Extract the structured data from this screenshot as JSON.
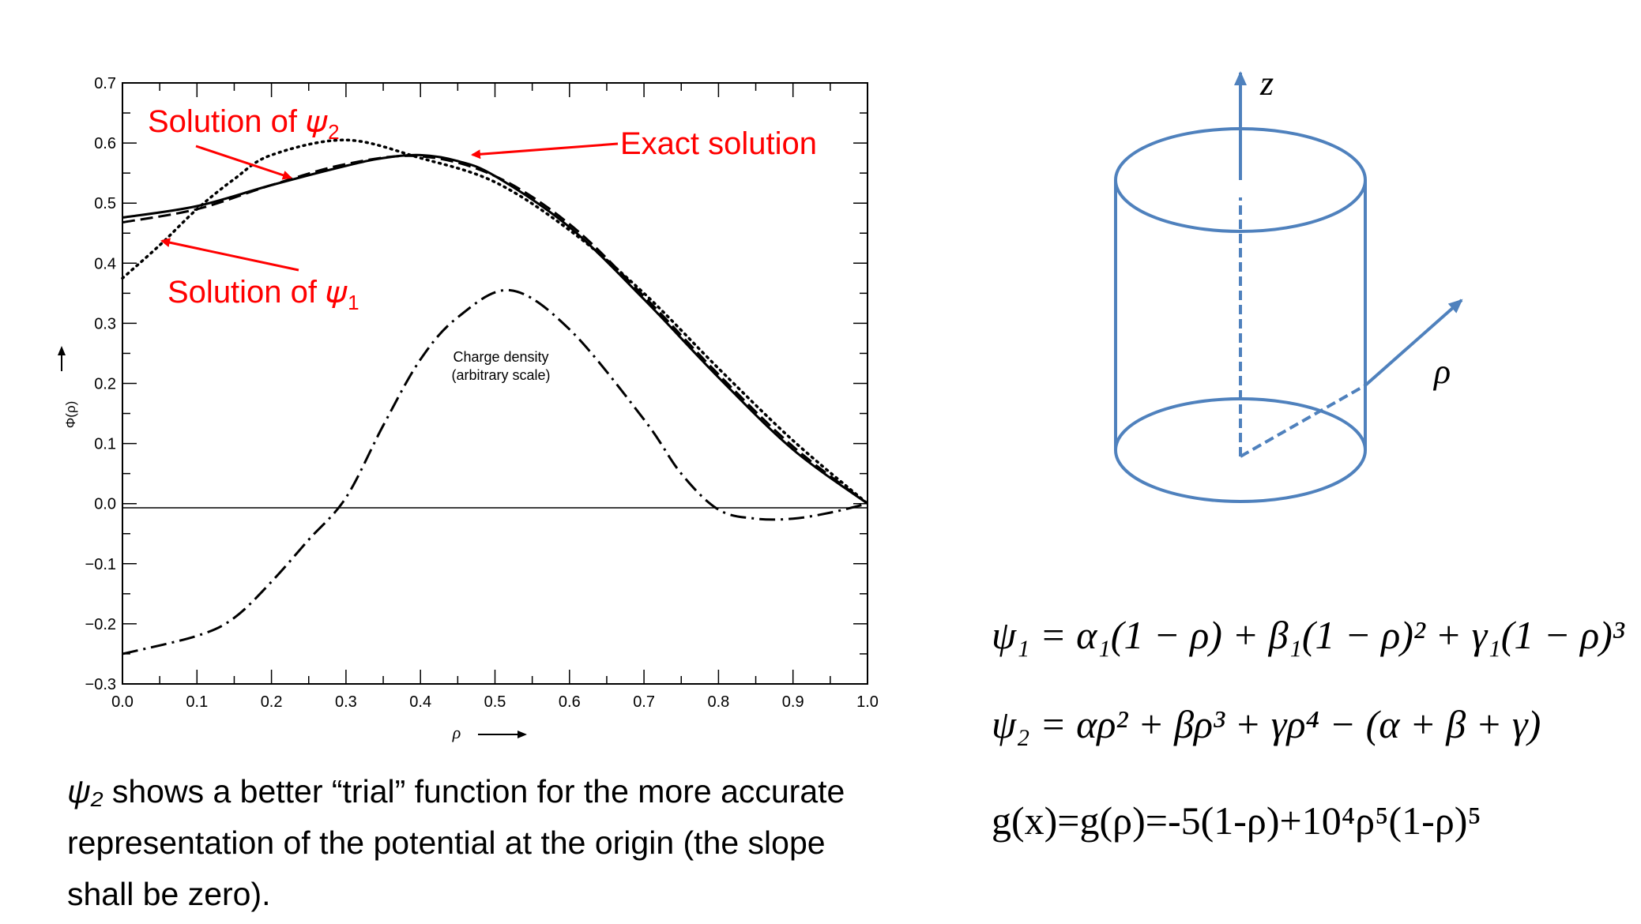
{
  "chart_data": {
    "type": "line",
    "xlabel": "ρ",
    "ylabel": "Φ(ρ)",
    "xlim": [
      0.0,
      1.0
    ],
    "ylim": [
      -0.3,
      0.7
    ],
    "x_ticks": [
      "0.0",
      "0.1",
      "0.2",
      "0.3",
      "0.4",
      "0.5",
      "0.6",
      "0.7",
      "0.8",
      "0.9",
      "1.0"
    ],
    "y_ticks": [
      "−0.3",
      "−0.2",
      "−0.1",
      "0.0",
      "0.1",
      "0.2",
      "0.3",
      "0.4",
      "0.5",
      "0.6",
      "0.7"
    ],
    "grid": false,
    "series": [
      {
        "name": "Exact solution",
        "style": "solid",
        "points": [
          [
            0,
            0.476
          ],
          [
            0.1,
            0.495
          ],
          [
            0.2,
            0.53
          ],
          [
            0.3,
            0.562
          ],
          [
            0.35,
            0.575
          ],
          [
            0.4,
            0.58
          ],
          [
            0.45,
            0.57
          ],
          [
            0.5,
            0.545
          ],
          [
            0.6,
            0.46
          ],
          [
            0.7,
            0.34
          ],
          [
            0.8,
            0.21
          ],
          [
            0.9,
            0.09
          ],
          [
            1.0,
            0.0
          ]
        ]
      },
      {
        "name": "Solution of ψ₂",
        "style": "dashed",
        "points": [
          [
            0,
            0.468
          ],
          [
            0.1,
            0.49
          ],
          [
            0.2,
            0.53
          ],
          [
            0.3,
            0.565
          ],
          [
            0.4,
            0.578
          ],
          [
            0.5,
            0.545
          ],
          [
            0.6,
            0.465
          ],
          [
            0.7,
            0.345
          ],
          [
            0.8,
            0.215
          ],
          [
            0.9,
            0.095
          ],
          [
            1.0,
            0.0
          ]
        ]
      },
      {
        "name": "Solution of ψ₁",
        "style": "dotted",
        "points": [
          [
            0,
            0.375
          ],
          [
            0.05,
            0.43
          ],
          [
            0.1,
            0.49
          ],
          [
            0.15,
            0.54
          ],
          [
            0.2,
            0.58
          ],
          [
            0.3,
            0.605
          ],
          [
            0.4,
            0.575
          ],
          [
            0.5,
            0.535
          ],
          [
            0.6,
            0.455
          ],
          [
            0.7,
            0.35
          ],
          [
            0.8,
            0.225
          ],
          [
            0.9,
            0.105
          ],
          [
            1.0,
            0.0
          ]
        ]
      },
      {
        "name": "Charge density (arbitrary scale)",
        "style": "dashdot",
        "points": [
          [
            0,
            -0.25
          ],
          [
            0.1,
            -0.22
          ],
          [
            0.15,
            -0.19
          ],
          [
            0.2,
            -0.13
          ],
          [
            0.25,
            -0.06
          ],
          [
            0.3,
            0.01
          ],
          [
            0.35,
            0.13
          ],
          [
            0.4,
            0.24
          ],
          [
            0.45,
            0.31
          ],
          [
            0.52,
            0.355
          ],
          [
            0.6,
            0.29
          ],
          [
            0.7,
            0.14
          ],
          [
            0.75,
            0.05
          ],
          [
            0.8,
            -0.01
          ],
          [
            0.85,
            -0.025
          ],
          [
            0.9,
            -0.025
          ],
          [
            0.95,
            -0.015
          ],
          [
            1.0,
            0.0
          ]
        ]
      }
    ],
    "annotations": {
      "psi2_label": "Solution of 𝜓",
      "psi2_sub": "2",
      "psi1_label": "Solution of 𝜓",
      "psi1_sub": "1",
      "exact_label": "Exact solution",
      "charge_label_1": "Charge density",
      "charge_label_2": "(arbitrary scale)"
    }
  },
  "cylinder": {
    "z_label": "z",
    "rho_label": "ρ"
  },
  "equations": {
    "eq1": "ψ₁ = α₁(1 − ρ) + β₁(1 − ρ)² + γ₁(1 − ρ)³",
    "eq2": "ψ₂ = αρ² + βρ³ + γρ⁴ − (α + β + γ)",
    "eq3": "g(x)=g(ρ)=-5(1-ρ)+10⁴ρ⁵(1-ρ)⁵"
  },
  "caption": {
    "psi": "ψ₂",
    "text": " shows a better “trial” function for the more accurate representation of the potential at the origin (the slope shall be zero)."
  },
  "colors": {
    "annotation_red": "#ff0000",
    "cylinder_blue": "#4f81bd"
  }
}
